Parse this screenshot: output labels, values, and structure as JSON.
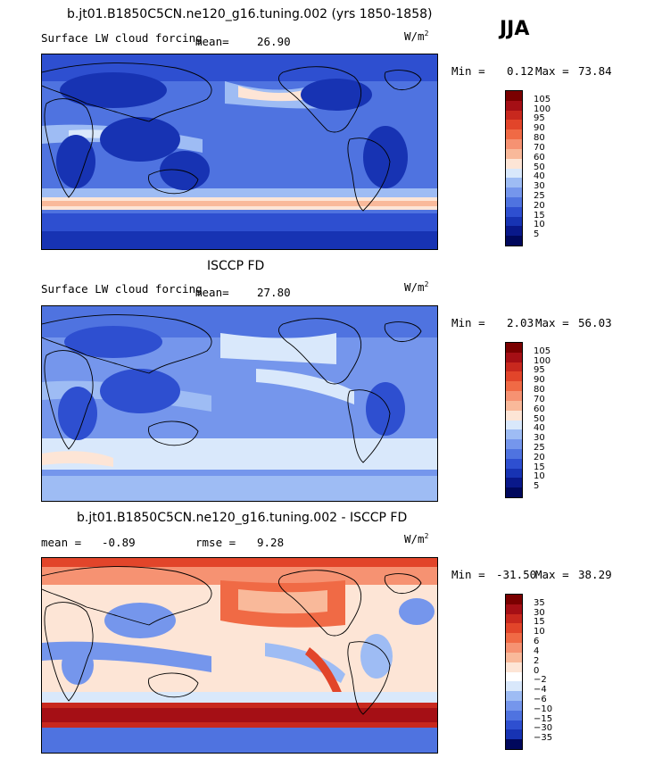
{
  "season": "JJA",
  "panels": [
    {
      "id": "model",
      "title": "b.jt01.B1850C5CN.ne120_g16.tuning.002 (yrs 1850-1858)",
      "field": "Surface LW cloud forcing",
      "mean_label": "mean=",
      "mean": "26.90",
      "units": "W/m",
      "units_sup": "2",
      "min_label": "Min =",
      "min": "0.12",
      "max_label": "Max =",
      "max": "73.84",
      "levels": [
        "105",
        "100",
        "95",
        "90",
        "80",
        "70",
        "60",
        "50",
        "40",
        "30",
        "25",
        "20",
        "15",
        "10",
        "5"
      ]
    },
    {
      "id": "obs",
      "title": "ISCCP FD",
      "field": "Surface LW cloud forcing",
      "mean_label": "mean=",
      "mean": "27.80",
      "units": "W/m",
      "units_sup": "2",
      "min_label": "Min =",
      "min": "2.03",
      "max_label": "Max =",
      "max": "56.03",
      "levels": [
        "105",
        "100",
        "95",
        "90",
        "80",
        "70",
        "60",
        "50",
        "40",
        "30",
        "25",
        "20",
        "15",
        "10",
        "5"
      ]
    },
    {
      "id": "diff",
      "title": "b.jt01.B1850C5CN.ne120_g16.tuning.002 - ISCCP FD",
      "mean_label": "mean =",
      "mean": "-0.89",
      "rmse_label": "rmse =",
      "rmse": "9.28",
      "units": "W/m",
      "units_sup": "2",
      "min_label": "Min =",
      "min": "-31.50",
      "max_label": "Max =",
      "max": "38.29",
      "levels": [
        "35",
        "30",
        "15",
        "10",
        "6",
        "4",
        "2",
        "0",
        "−2",
        "−4",
        "−6",
        "−10",
        "−15",
        "−30",
        "−35"
      ]
    }
  ],
  "colors": {
    "abs_scale": [
      "#7a0000",
      "#a50f15",
      "#c8281e",
      "#e2452a",
      "#f06a45",
      "#f69272",
      "#f9b99a",
      "#fde5d6",
      "#d9e8fb",
      "#9ebcf4",
      "#7596ec",
      "#4f73e0",
      "#2e4fd0",
      "#1733b3",
      "#09188a",
      "#00085c"
    ],
    "diff_scale": [
      "#7a0000",
      "#a50f15",
      "#c8281e",
      "#e2452a",
      "#f06a45",
      "#f69272",
      "#f9b99a",
      "#fde5d6",
      "#ffffff",
      "#d9e8fb",
      "#9ebcf4",
      "#7596ec",
      "#4f73e0",
      "#2e4fd0",
      "#1733b3",
      "#00085c"
    ]
  }
}
